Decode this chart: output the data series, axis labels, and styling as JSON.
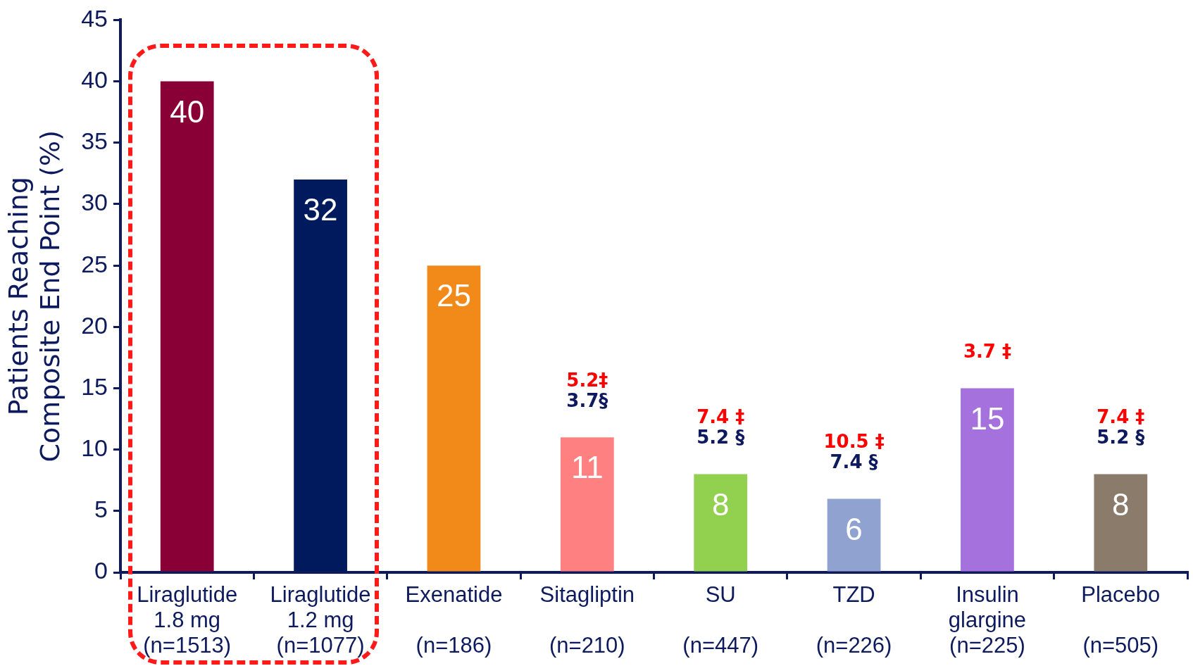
{
  "chart_data": {
    "type": "bar",
    "categories": [
      "Liraglutide\n1.8 mg\n(n=1513)",
      "Liraglutide\n1.2 mg\n(n=1077)",
      "Exenatide\n\n(n=186)",
      "Sitagliptin\n\n(n=210)",
      "SU\n\n(n=447)",
      "TZD\n\n(n=226)",
      "Insulin\nglargine\n(n=225)",
      "Placebo\n\n(n=505)"
    ],
    "values": [
      40,
      32,
      25,
      11,
      8,
      6,
      15,
      8
    ],
    "colors": [
      "#880036",
      "#001a5e",
      "#f28a1a",
      "#ff8080",
      "#92d050",
      "#8fa2d0",
      "#a571dd",
      "#8b7b6b"
    ],
    "ylabel": "Patients Reaching\nComposite End Point (%)",
    "ylim": [
      0,
      45
    ],
    "yticks": [
      0,
      5,
      10,
      15,
      20,
      25,
      30,
      35,
      40,
      45
    ],
    "data_labels": true,
    "legend": false,
    "grid": false,
    "annotations": [
      {
        "text": "5.2‡",
        "x": "Sitagliptin\n\n(n=210)",
        "y": 11
      },
      {
        "text": "3.7§",
        "x": "Sitagliptin\n\n(n=210)",
        "y": 11
      },
      {
        "text": "7.4 ‡",
        "x": "SU\n\n(n=447)",
        "y": 8
      },
      {
        "text": "5.2 §",
        "x": "SU\n\n(n=447)",
        "y": 8
      },
      {
        "text": "10.5 ‡",
        "x": "TZD\n\n(n=226)",
        "y": 6
      },
      {
        "text": "7.4 §",
        "x": "TZD\n\n(n=226)",
        "y": 6
      },
      {
        "text": "3.7 ‡",
        "x": "Insulin\nglargine\n(n=225)",
        "y": 15
      },
      {
        "text": "7.4 ‡",
        "x": "Placebo\n\n(n=505)",
        "y": 8
      },
      {
        "text": "5.2 §",
        "x": "Placebo\n\n(n=505)",
        "y": 8
      }
    ]
  }
}
